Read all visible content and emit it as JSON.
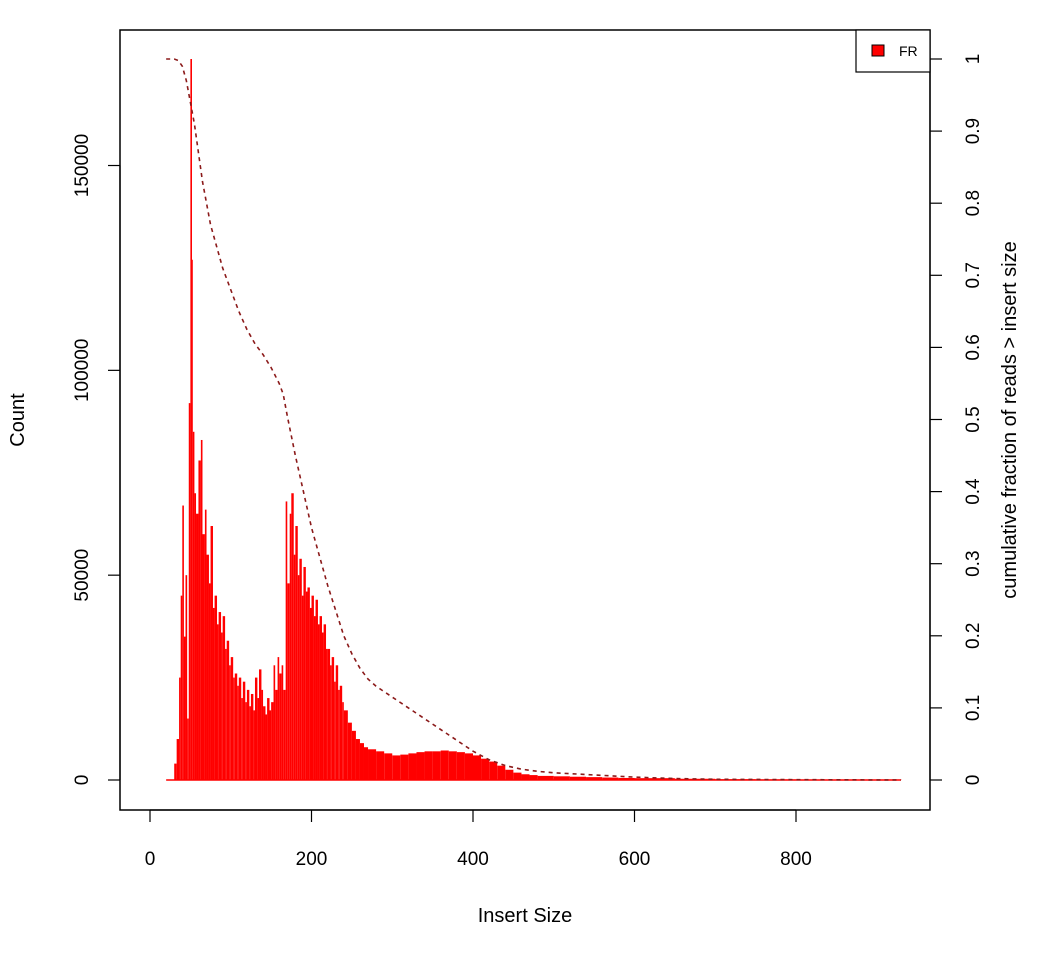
{
  "colors": {
    "histogram": "#ff0000",
    "cumulative": "#8b1a1a",
    "axis": "#000000",
    "background": "#ffffff"
  },
  "chart_data": {
    "type": "bar",
    "title": "",
    "xlabel": "Insert Size",
    "ylabel": "Count",
    "y2label": "cumulative fraction of reads > insert size",
    "xlim": [
      0,
      930
    ],
    "ylim": [
      0,
      176000
    ],
    "y2lim": [
      0,
      1
    ],
    "xticks": [
      0,
      200,
      400,
      600,
      800
    ],
    "yticks": [
      0,
      50000,
      100000,
      150000
    ],
    "y2ticks": [
      0,
      0.1,
      0.2,
      0.3,
      0.4,
      0.5,
      0.6,
      0.7,
      0.8,
      0.9,
      1
    ],
    "grid": false,
    "legend": {
      "position": "top-right",
      "entries": [
        {
          "label": "FR",
          "color": "#ff0000"
        }
      ]
    },
    "series": [
      {
        "name": "FR",
        "type": "histogram",
        "x": [
          20,
          25,
          30,
          33,
          36,
          38,
          40,
          42,
          44,
          46,
          48,
          50,
          52,
          53,
          55,
          57,
          60,
          63,
          65,
          68,
          70,
          73,
          75,
          78,
          80,
          83,
          85,
          88,
          90,
          93,
          95,
          98,
          100,
          103,
          105,
          108,
          110,
          113,
          115,
          118,
          120,
          123,
          125,
          128,
          130,
          133,
          135,
          138,
          140,
          143,
          145,
          148,
          150,
          153,
          155,
          158,
          160,
          163,
          165,
          168,
          170,
          173,
          175,
          178,
          180,
          183,
          185,
          188,
          190,
          193,
          195,
          198,
          200,
          203,
          205,
          208,
          210,
          213,
          215,
          218,
          220,
          223,
          225,
          228,
          230,
          233,
          235,
          238,
          240,
          245,
          250,
          255,
          260,
          265,
          270,
          280,
          290,
          300,
          310,
          320,
          330,
          340,
          350,
          360,
          370,
          380,
          390,
          400,
          410,
          420,
          430,
          440,
          450,
          460,
          470,
          480,
          500,
          520,
          540,
          560,
          580,
          600,
          650,
          700,
          750,
          800,
          850,
          900,
          930
        ],
        "values": [
          0,
          0,
          4000,
          10000,
          25000,
          45000,
          67000,
          35000,
          50000,
          15000,
          92000,
          176000,
          127000,
          85000,
          70000,
          65000,
          78000,
          83000,
          60000,
          66000,
          55000,
          48000,
          62000,
          42000,
          45000,
          38000,
          41000,
          36000,
          40000,
          32000,
          34000,
          28000,
          30000,
          25000,
          26000,
          23000,
          25000,
          20000,
          24000,
          19000,
          22000,
          18000,
          21000,
          17000,
          25000,
          20000,
          27000,
          22000,
          18000,
          16000,
          20000,
          17000,
          19000,
          28000,
          22000,
          30000,
          26000,
          28000,
          22000,
          68000,
          48000,
          65000,
          70000,
          55000,
          62000,
          50000,
          54000,
          45000,
          52000,
          46000,
          47000,
          42000,
          45000,
          40000,
          44000,
          38000,
          40000,
          36000,
          38000,
          32000,
          32000,
          28000,
          30000,
          24000,
          28000,
          22000,
          23000,
          19000,
          17000,
          14000,
          12000,
          10000,
          9000,
          8000,
          7500,
          7000,
          6500,
          6000,
          6200,
          6500,
          6800,
          7000,
          7000,
          7200,
          7000,
          6800,
          6500,
          6000,
          5200,
          4500,
          3500,
          2500,
          1800,
          1400,
          1200,
          1000,
          900,
          800,
          700,
          600,
          500,
          450,
          300,
          200,
          150,
          100,
          80,
          60,
          50
        ]
      },
      {
        "name": "cumulative",
        "type": "line",
        "axis": "y2",
        "dash": "dashed",
        "x": [
          20,
          30,
          35,
          40,
          45,
          50,
          55,
          60,
          65,
          70,
          75,
          80,
          90,
          100,
          110,
          120,
          130,
          140,
          150,
          160,
          165,
          170,
          180,
          190,
          200,
          210,
          220,
          230,
          240,
          250,
          260,
          270,
          280,
          300,
          320,
          340,
          360,
          380,
          400,
          420,
          440,
          460,
          480,
          500,
          550,
          600,
          650,
          700,
          800,
          930
        ],
        "values": [
          1.0,
          1.0,
          0.998,
          0.99,
          0.97,
          0.94,
          0.91,
          0.87,
          0.83,
          0.8,
          0.77,
          0.75,
          0.71,
          0.68,
          0.65,
          0.625,
          0.605,
          0.59,
          0.572,
          0.55,
          0.535,
          0.505,
          0.45,
          0.4,
          0.35,
          0.31,
          0.27,
          0.235,
          0.2,
          0.175,
          0.155,
          0.14,
          0.13,
          0.115,
          0.1,
          0.085,
          0.07,
          0.055,
          0.04,
          0.028,
          0.02,
          0.015,
          0.012,
          0.01,
          0.007,
          0.004,
          0.002,
          0.001,
          0.0005,
          0.0
        ]
      }
    ]
  }
}
